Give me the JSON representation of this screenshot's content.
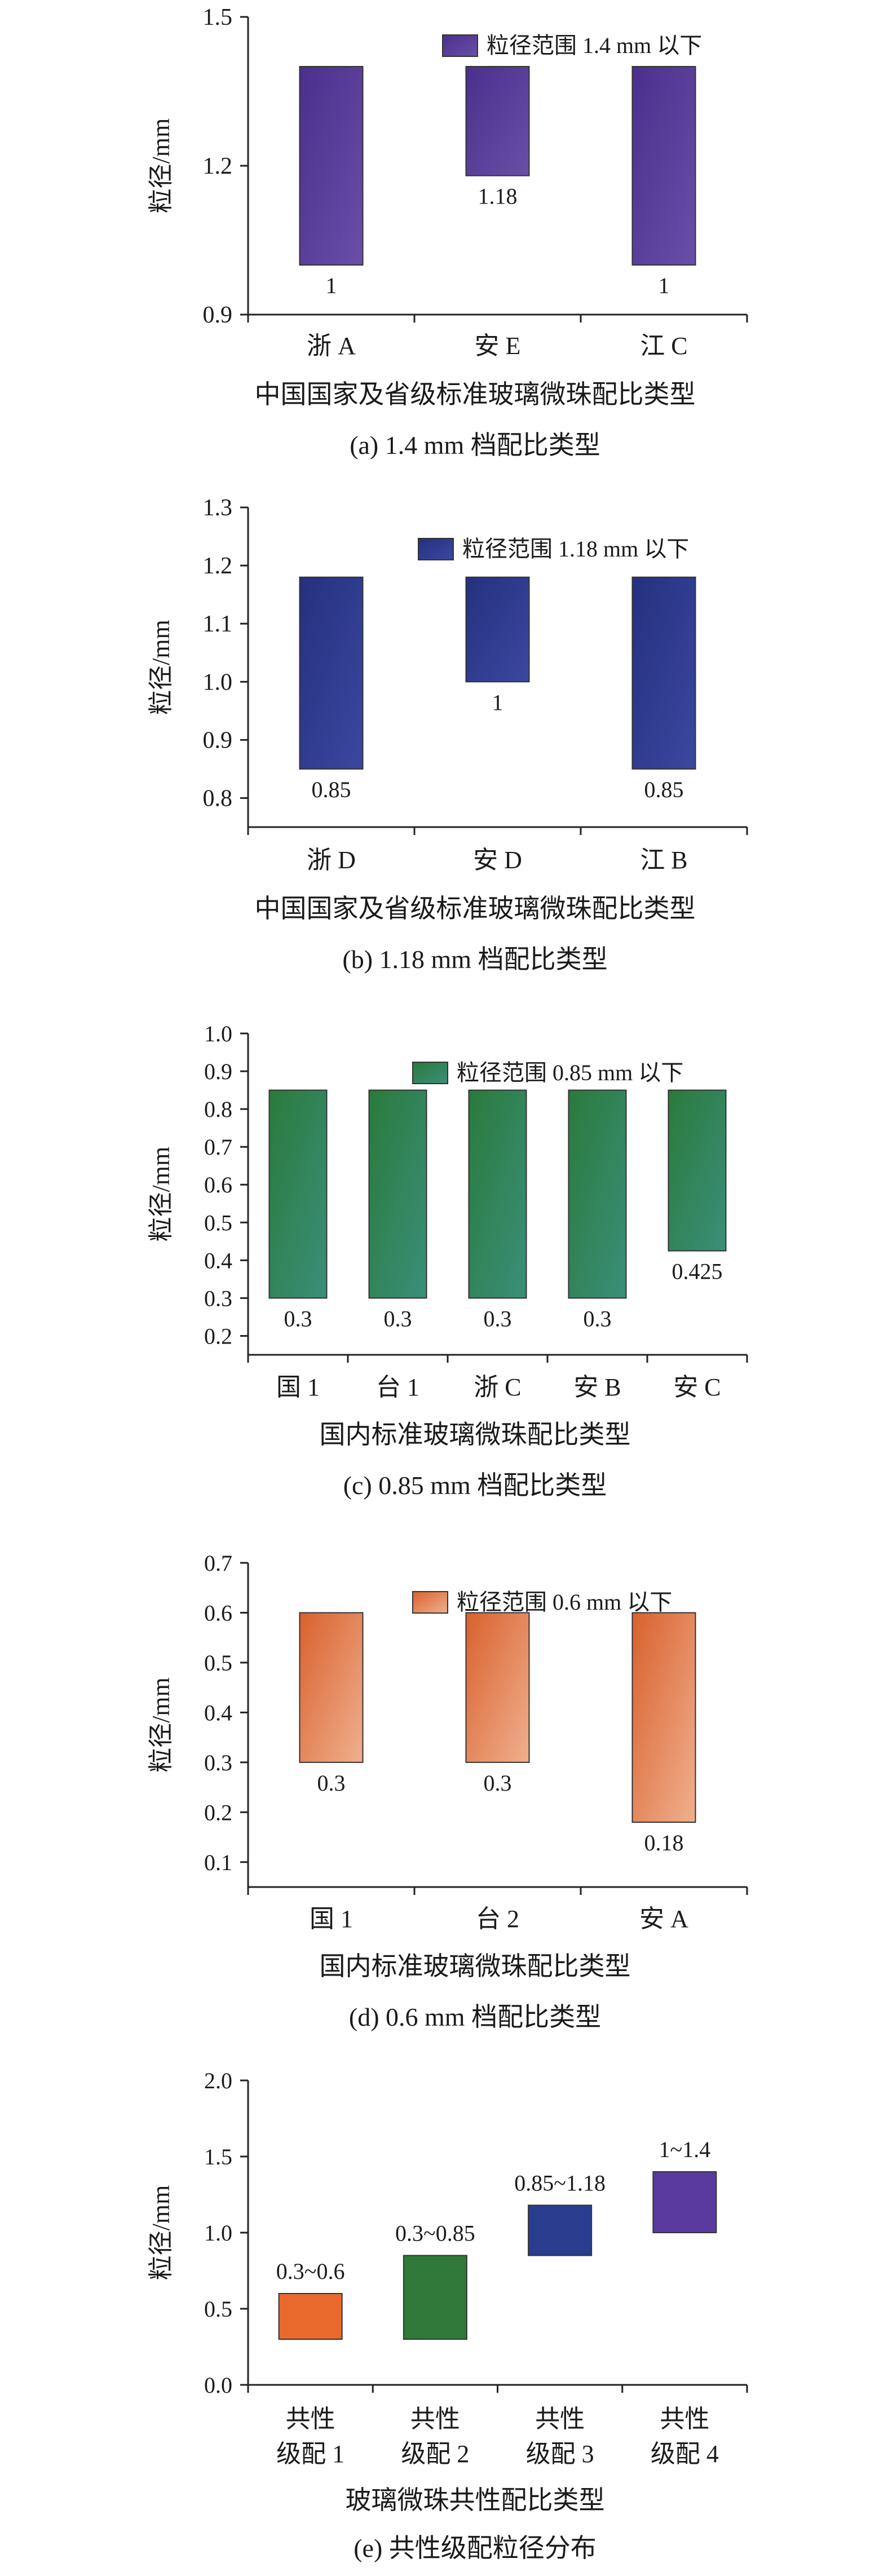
{
  "chart_data": [
    {
      "type": "bar",
      "subtype": "floating-range",
      "caption": "(a) 1.4 mm 档配比类型",
      "xlabel": "中国国家及省级标准玻璃微珠配比类型",
      "ylabel": "粒径/mm",
      "ylim": [
        0.9,
        1.5
      ],
      "yticks": [
        "0.9",
        "1.2",
        "1.5"
      ],
      "legend": {
        "label": "粒径范围 1.4 mm 以下",
        "placement": "top-right"
      },
      "categories": [
        "浙 A",
        "安 E",
        "江 C"
      ],
      "low": [
        1,
        1.18,
        1
      ],
      "high": [
        1.4,
        1.4,
        1.4
      ],
      "low_labels": [
        "1",
        "1.18",
        "1"
      ],
      "colors": {
        "dark": "#4a2f8c",
        "light": "#6a4fa8",
        "stroke": "#333333"
      }
    },
    {
      "type": "bar",
      "subtype": "floating-range",
      "caption": "(b) 1.18 mm 档配比类型",
      "xlabel": "中国国家及省级标准玻璃微珠配比类型",
      "ylabel": "粒径/mm",
      "ylim": [
        0.75,
        1.3
      ],
      "yticks": [
        "0.8",
        "0.9",
        "1.0",
        "1.1",
        "1.2",
        "1.3"
      ],
      "legend": {
        "label": "粒径范围 1.18 mm 以下",
        "placement": "top-right"
      },
      "categories": [
        "浙 D",
        "安 D",
        "江 B"
      ],
      "low": [
        0.85,
        1,
        0.85
      ],
      "high": [
        1.18,
        1.18,
        1.18
      ],
      "low_labels": [
        "0.85",
        "1",
        "0.85"
      ],
      "colors": {
        "dark": "#25307e",
        "light": "#3a48a0",
        "stroke": "#333333"
      }
    },
    {
      "type": "bar",
      "subtype": "floating-range",
      "caption": "(c) 0.85 mm 档配比类型",
      "xlabel": "国内标准玻璃微珠配比类型",
      "ylabel": "粒径/mm",
      "ylim": [
        0.15,
        1.0
      ],
      "yticks": [
        "0.2",
        "0.3",
        "0.4",
        "0.5",
        "0.6",
        "0.7",
        "0.8",
        "0.9",
        "1.0"
      ],
      "legend": {
        "label": "粒径范围 0.85 mm 以下",
        "placement": "top-right"
      },
      "categories": [
        "国 1",
        "台 1",
        "浙 C",
        "安 B",
        "安 C"
      ],
      "low": [
        0.3,
        0.3,
        0.3,
        0.3,
        0.425
      ],
      "high": [
        0.85,
        0.85,
        0.85,
        0.85,
        0.85
      ],
      "low_labels": [
        "0.3",
        "0.3",
        "0.3",
        "0.3",
        "0.425"
      ],
      "colors": {
        "dark": "#2a7a3c",
        "light": "#3a8f7a",
        "stroke": "#333333"
      }
    },
    {
      "type": "bar",
      "subtype": "floating-range",
      "caption": "(d) 0.6 mm 档配比类型",
      "xlabel": "国内标准玻璃微珠配比类型",
      "ylabel": "粒径/mm",
      "ylim": [
        0.05,
        0.7
      ],
      "yticks": [
        "0.1",
        "0.2",
        "0.3",
        "0.4",
        "0.5",
        "0.6",
        "0.7"
      ],
      "legend": {
        "label": "粒径范围 0.6 mm 以下",
        "placement": "top-right"
      },
      "categories": [
        "国 1",
        "台 2",
        "安 A"
      ],
      "low": [
        0.3,
        0.3,
        0.18
      ],
      "high": [
        0.6,
        0.6,
        0.6
      ],
      "low_labels": [
        "0.3",
        "0.3",
        "0.18"
      ],
      "colors": {
        "dark": "#d9612e",
        "light": "#f0b08e",
        "stroke": "#333333"
      }
    },
    {
      "type": "bar",
      "subtype": "floating-range",
      "caption": "(e) 共性级配粒径分布",
      "xlabel": "玻璃微珠共性配比类型",
      "ylabel": "粒径/mm",
      "ylim": [
        0,
        2.0
      ],
      "yticks": [
        "0.0",
        "0.5",
        "1.0",
        "1.5",
        "2.0"
      ],
      "categories": [
        [
          "共性",
          "级配 1"
        ],
        [
          "共性",
          "级配 2"
        ],
        [
          "共性",
          "级配 3"
        ],
        [
          "共性",
          "级配 4"
        ]
      ],
      "low": [
        0.3,
        0.3,
        0.85,
        1
      ],
      "high": [
        0.6,
        0.85,
        1.18,
        1.4
      ],
      "range_labels": [
        "0.3~0.6",
        "0.3~0.85",
        "0.85~1.18",
        "1~1.4"
      ],
      "bar_colors": [
        "#ea6a2e",
        "#2f7a3a",
        "#2b3d8f",
        "#5a3a9e"
      ],
      "colors": {
        "stroke": "#333333"
      }
    }
  ]
}
